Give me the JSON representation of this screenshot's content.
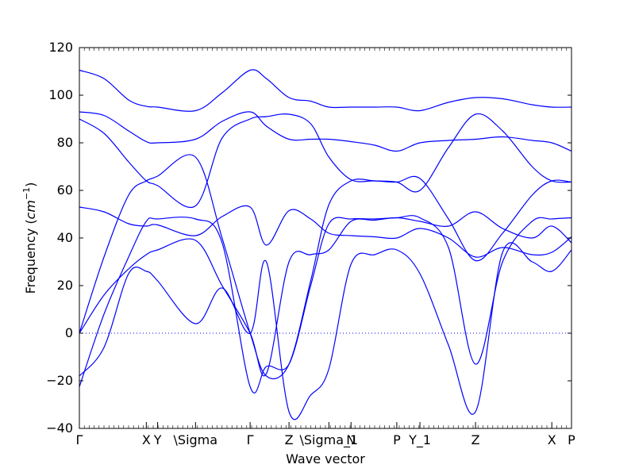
{
  "chart_data": {
    "type": "line",
    "title": "",
    "xlabel": "Wave vector",
    "ylabel_text": "Frequency (",
    "ylabel_unit_base": "cm",
    "ylabel_unit_exp": "−1",
    "ylabel_close": ")",
    "ylim": [
      -40,
      120
    ],
    "yticks": [
      -40,
      -20,
      0,
      20,
      40,
      60,
      80,
      100,
      120
    ],
    "ytick_labels": [
      "−40",
      "−20",
      "0",
      "20",
      "40",
      "60",
      "80",
      "100",
      "120"
    ],
    "xlim": [
      0,
      1
    ],
    "high_symmetry_points": [
      {
        "label": "Γ",
        "x": 0.0
      },
      {
        "label": "X",
        "x": 0.136
      },
      {
        "label": "Y",
        "x": 0.159
      },
      {
        "label": "\\Sigma",
        "x": 0.236
      },
      {
        "label": "Γ",
        "x": 0.347
      },
      {
        "label": "Z",
        "x": 0.426
      },
      {
        "label": "\\Sigma_1",
        "x": 0.507
      },
      {
        "label": "N",
        "x": 0.552
      },
      {
        "label": "P",
        "x": 0.645
      },
      {
        "label": "Y_1",
        "x": 0.692
      },
      {
        "label": "Z",
        "x": 0.805
      },
      {
        "label": "X",
        "x": 0.96
      },
      {
        "label": "P",
        "x": 1.0
      }
    ],
    "zero_line": true,
    "line_color": "#0000ff",
    "series": [
      {
        "x": [
          0,
          0.05,
          0.1,
          0.136,
          0.159,
          0.236,
          0.29,
          0.347,
          0.38,
          0.426,
          0.47,
          0.507,
          0.552,
          0.6,
          0.645,
          0.692,
          0.75,
          0.805,
          0.86,
          0.92,
          0.96,
          1.0
        ],
        "values": [
          110.5,
          107,
          98,
          95.3,
          95,
          93.5,
          101,
          110.5,
          107,
          99,
          97.5,
          95,
          95,
          95,
          95,
          93.5,
          97,
          99,
          98.5,
          96,
          95,
          95
        ]
      },
      {
        "x": [
          0,
          0.05,
          0.1,
          0.136,
          0.159,
          0.236,
          0.29,
          0.347,
          0.38,
          0.426,
          0.47,
          0.507,
          0.552,
          0.6,
          0.645,
          0.692,
          0.75,
          0.805,
          0.86,
          0.92,
          0.96,
          1.0
        ],
        "values": [
          93,
          91.5,
          85,
          80.5,
          80,
          81.5,
          89,
          93,
          87,
          81.5,
          81.5,
          81.5,
          80.5,
          79,
          76.5,
          80,
          81,
          81.5,
          82.5,
          81,
          80,
          76.5
        ]
      },
      {
        "x": [
          0,
          0.05,
          0.1,
          0.136,
          0.159,
          0.236,
          0.29,
          0.347,
          0.38,
          0.426,
          0.47,
          0.507,
          0.552,
          0.6,
          0.645,
          0.692,
          0.75,
          0.805,
          0.86,
          0.92,
          0.96,
          1.0
        ],
        "values": [
          90,
          84,
          72,
          64,
          62,
          53.5,
          82,
          90,
          91,
          92,
          88,
          74,
          64.5,
          64,
          63.5,
          60,
          78,
          92,
          85,
          70,
          64,
          63.5
        ]
      },
      {
        "x": [
          0,
          0.05,
          0.1,
          0.136,
          0.159,
          0.236,
          0.29,
          0.347,
          0.38,
          0.426,
          0.47,
          0.507,
          0.552,
          0.6,
          0.645,
          0.692,
          0.75,
          0.805,
          0.86,
          0.92,
          0.96,
          1.0
        ],
        "values": [
          0,
          32,
          58,
          64,
          66,
          74,
          40,
          0,
          -18,
          -13,
          22,
          54,
          64,
          64,
          63.5,
          65,
          48,
          30.5,
          42,
          58,
          64,
          63.5
        ]
      },
      {
        "x": [
          0,
          0.05,
          0.1,
          0.136,
          0.159,
          0.236,
          0.29,
          0.347,
          0.38,
          0.426,
          0.47,
          0.507,
          0.552,
          0.6,
          0.645,
          0.692,
          0.75,
          0.805,
          0.86,
          0.92,
          0.96,
          1.0
        ],
        "values": [
          53,
          51,
          46,
          45,
          45.5,
          41,
          49,
          53,
          37,
          51.5,
          48,
          42,
          41,
          40.5,
          40,
          44,
          40,
          32,
          36,
          33,
          34,
          40.5
        ]
      },
      {
        "x": [
          0,
          0.05,
          0.1,
          0.136,
          0.159,
          0.236,
          0.29,
          0.347,
          0.38,
          0.426,
          0.47,
          0.507,
          0.552,
          0.6,
          0.645,
          0.692,
          0.75,
          0.805,
          0.86,
          0.92,
          0.96,
          1.0
        ],
        "values": [
          -22.5,
          8,
          32,
          47,
          48,
          48,
          38,
          -22.5,
          -14,
          -13,
          20,
          46,
          48,
          48,
          48.5,
          48.5,
          36,
          -13,
          30,
          47,
          48,
          48.5
        ]
      },
      {
        "x": [
          0,
          0.05,
          0.1,
          0.136,
          0.159,
          0.236,
          0.29,
          0.347,
          0.38,
          0.426,
          0.47,
          0.507,
          0.552,
          0.6,
          0.645,
          0.692,
          0.75,
          0.805,
          0.86,
          0.92,
          0.96,
          1.0
        ],
        "values": [
          0,
          16,
          27,
          33,
          35,
          39,
          20,
          0,
          -17,
          30,
          33,
          35,
          47,
          47.5,
          48.5,
          47,
          45,
          51,
          44,
          40,
          45,
          38
        ]
      },
      {
        "x": [
          0,
          0.05,
          0.1,
          0.136,
          0.159,
          0.236,
          0.29,
          0.347,
          0.38,
          0.426,
          0.47,
          0.507,
          0.552,
          0.6,
          0.645,
          0.692,
          0.75,
          0.805,
          0.86,
          0.92,
          0.96,
          1.0
        ],
        "values": [
          -18,
          -6,
          25,
          26,
          22,
          4,
          19,
          0,
          30,
          -33,
          -26,
          -15,
          29,
          33,
          35,
          25,
          -5,
          -33,
          34,
          30,
          26,
          35
        ]
      }
    ]
  }
}
